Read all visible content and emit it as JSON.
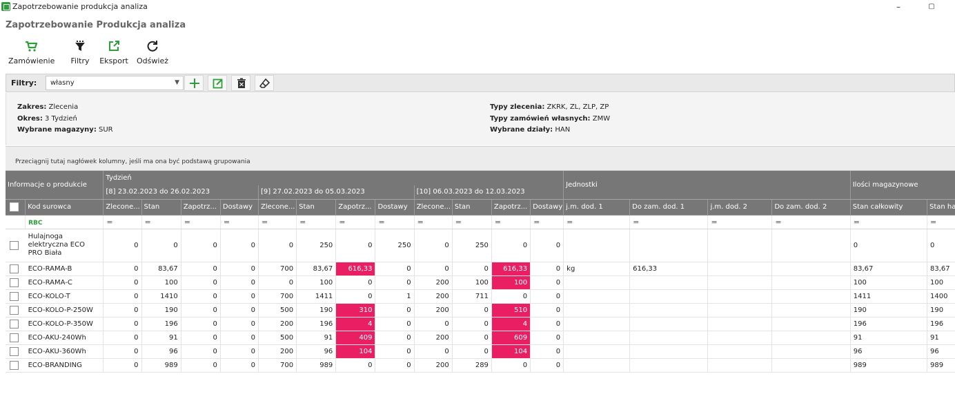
{
  "window": {
    "title": "Zapotrzebowanie produkcja analiza",
    "minimize": "–",
    "restore": "▢"
  },
  "page_title": "Zapotrzebowanie Produkcja analiza",
  "toolbar": {
    "order": "Zamówienie",
    "filters": "Filtry",
    "export": "Eksport",
    "refresh": "Odśwież"
  },
  "filter": {
    "label": "Filtry:",
    "value": "własny"
  },
  "info": {
    "zakres_label": "Zakres:",
    "zakres": "Zlecenia",
    "okres_label": "Okres:",
    "okres": "3 Tydzień",
    "magazyny_label": "Wybrane magazyny:",
    "magazyny": "SUR",
    "typy_zlecenia_label": "Typy zlecenia:",
    "typy_zlecenia": "ZKRK, ZL, ZLP, ZP",
    "typy_zamowien_label": "Typy zamówień własnych:",
    "typy_zamowien": "ZMW",
    "dzialy_label": "Wybrane działy:",
    "dzialy": "HAN"
  },
  "group_hint": "Przeciągnij tutaj nagłówek kolumny, jeśli ma ona być podstawą grupowania",
  "bands": {
    "info": "Informacje o produkcie",
    "tydzien": "Tydzień",
    "w1": "[8] 23.02.2023 do 26.02.2023",
    "w2": "[9] 27.02.2023 do 05.03.2023",
    "w3": "[10] 06.03.2023 do 12.03.2023",
    "jednostki": "Jednostki",
    "ilosci": "Ilości magazynowe"
  },
  "columns": {
    "kod": "Kod surowca",
    "zlecone": "Zlecone...",
    "stan": "Stan",
    "zapotrz": "Zapotrz...",
    "dostawy": "Dostawy",
    "jm1": "j.m. dod. 1",
    "dozam1": "Do zam. dod. 1",
    "jm2": "j.m. dod. 2",
    "dozam2": "Do zam. dod. 2",
    "stan_calk": "Stan całkowity",
    "stan_handl": "Stan handl"
  },
  "filter_row": {
    "kod": "RBC",
    "eq": "="
  },
  "rows": [
    {
      "kod": "Hulajnoga elektryczna ECO PRO Biała",
      "w": [
        [
          "0",
          "0",
          "0",
          "0"
        ],
        [
          "0",
          "250",
          "0",
          "250"
        ],
        [
          "0",
          "250",
          "0",
          "0"
        ]
      ],
      "jm1": "",
      "dozam1": "",
      "jm2": "",
      "dozam2": "",
      "stan_calk": "0",
      "stan_handl": "0",
      "hl": []
    },
    {
      "kod": "ECO-RAMA-B",
      "w": [
        [
          "0",
          "83,67",
          "0",
          "0"
        ],
        [
          "700",
          "83,67",
          "616,33",
          "0"
        ],
        [
          "0",
          "0",
          "616,33",
          "0"
        ]
      ],
      "jm1": "kg",
      "dozam1": "616,33",
      "jm2": "",
      "dozam2": "",
      "stan_calk": "83,67",
      "stan_handl": "83,67",
      "hl": [
        1,
        2
      ]
    },
    {
      "kod": "ECO-RAMA-C",
      "w": [
        [
          "0",
          "100",
          "0",
          "0"
        ],
        [
          "0",
          "100",
          "0",
          "0"
        ],
        [
          "200",
          "100",
          "100",
          "0"
        ]
      ],
      "jm1": "",
      "dozam1": "",
      "jm2": "",
      "dozam2": "",
      "stan_calk": "100",
      "stan_handl": "100",
      "hl": [
        2
      ]
    },
    {
      "kod": "ECO-KOLO-T",
      "w": [
        [
          "0",
          "1410",
          "0",
          "0"
        ],
        [
          "700",
          "1411",
          "0",
          "1"
        ],
        [
          "200",
          "711",
          "0",
          "0"
        ]
      ],
      "jm1": "",
      "dozam1": "",
      "jm2": "",
      "dozam2": "",
      "stan_calk": "1411",
      "stan_handl": "1400",
      "hl": []
    },
    {
      "kod": "ECO-KOLO-P-250W",
      "w": [
        [
          "0",
          "190",
          "0",
          "0"
        ],
        [
          "500",
          "190",
          "310",
          "0"
        ],
        [
          "200",
          "0",
          "510",
          "0"
        ]
      ],
      "jm1": "",
      "dozam1": "",
      "jm2": "",
      "dozam2": "",
      "stan_calk": "190",
      "stan_handl": "190",
      "hl": [
        1,
        2
      ]
    },
    {
      "kod": "ECO-KOLO-P-350W",
      "w": [
        [
          "0",
          "196",
          "0",
          "0"
        ],
        [
          "200",
          "196",
          "4",
          "0"
        ],
        [
          "0",
          "0",
          "4",
          "0"
        ]
      ],
      "jm1": "",
      "dozam1": "",
      "jm2": "",
      "dozam2": "",
      "stan_calk": "196",
      "stan_handl": "196",
      "hl": [
        1,
        2
      ]
    },
    {
      "kod": "ECO-AKU-240Wh",
      "w": [
        [
          "0",
          "91",
          "0",
          "0"
        ],
        [
          "500",
          "91",
          "409",
          "0"
        ],
        [
          "200",
          "0",
          "609",
          "0"
        ]
      ],
      "jm1": "",
      "dozam1": "",
      "jm2": "",
      "dozam2": "",
      "stan_calk": "91",
      "stan_handl": "91",
      "hl": [
        1,
        2
      ]
    },
    {
      "kod": "ECO-AKU-360Wh",
      "w": [
        [
          "0",
          "96",
          "0",
          "0"
        ],
        [
          "200",
          "96",
          "104",
          "0"
        ],
        [
          "0",
          "0",
          "104",
          "0"
        ]
      ],
      "jm1": "",
      "dozam1": "",
      "jm2": "",
      "dozam2": "",
      "stan_calk": "96",
      "stan_handl": "96",
      "hl": [
        1,
        2
      ]
    },
    {
      "kod": "ECO-BRANDING",
      "w": [
        [
          "0",
          "989",
          "0",
          "0"
        ],
        [
          "700",
          "989",
          "0",
          "0"
        ],
        [
          "200",
          "289",
          "0",
          "0"
        ]
      ],
      "jm1": "",
      "dozam1": "",
      "jm2": "",
      "dozam2": "",
      "stan_calk": "989",
      "stan_handl": "989",
      "hl": []
    }
  ]
}
